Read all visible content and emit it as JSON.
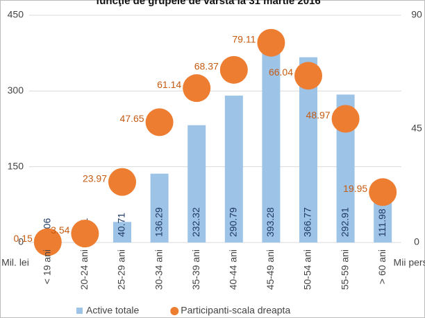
{
  "chart_data": {
    "type": "bar",
    "title": "funcţie de grupele de vârsta la 31 martie 2016",
    "y_label": "Mil. lei",
    "y2_label": "Mii pers.",
    "categories": [
      "< 19 ani",
      "20-24 ani",
      "25-29 ani",
      "30-34 ani",
      "35-39 ani",
      "40-44 ani",
      "45-49 ani",
      "50-54 ani",
      "55-59 ani",
      "> 60 ani"
    ],
    "series": [
      {
        "name": "Active totale",
        "type": "bar",
        "color": "#9dc3e6",
        "label_color": "#1f3864",
        "values": [
          0.06,
          4.71,
          40.71,
          136.29,
          232.32,
          290.79,
          393.28,
          366.77,
          292.91,
          111.98
        ]
      },
      {
        "name": "Participanti-scala dreapta",
        "type": "scatter",
        "axis": "y2",
        "color": "#ed7d31",
        "label_color": "#c55a11",
        "values": [
          0.15,
          3.54,
          23.97,
          47.65,
          61.14,
          68.37,
          79.11,
          66.04,
          48.97,
          19.95
        ]
      }
    ],
    "ylim": [
      0,
      450
    ],
    "yticks": [
      0,
      150,
      300,
      450
    ],
    "y2lim": [
      0,
      90
    ],
    "y2ticks": [
      0,
      45,
      90
    ],
    "grid": true
  }
}
